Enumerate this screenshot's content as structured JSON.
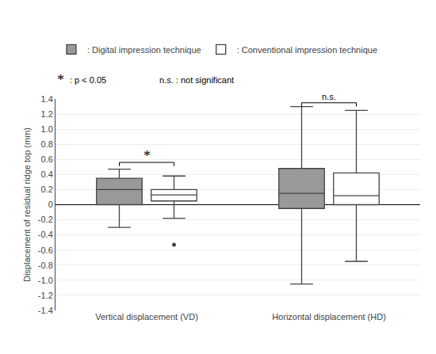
{
  "chart_data": {
    "type": "box",
    "ylabel": "Displacement of residual ridge top (mm)",
    "categories": [
      "Vertical displacement (VD)",
      "Horizontal displacement (HD)"
    ],
    "series": [
      {
        "name": ": Digital impression technique",
        "color": "#999999",
        "q1": [
          0.0,
          -0.05
        ],
        "median": [
          0.2,
          0.15
        ],
        "q3": [
          0.35,
          0.48
        ],
        "whisker_low": [
          -0.3,
          -1.05
        ],
        "whisker_high": [
          0.47,
          1.3
        ],
        "outliers": [
          [],
          []
        ]
      },
      {
        "name": ": Conventional impression technique",
        "color": "#ffffff",
        "q1": [
          0.05,
          0.0
        ],
        "median": [
          0.13,
          0.12
        ],
        "q3": [
          0.2,
          0.42
        ],
        "whisker_low": [
          -0.18,
          -0.75
        ],
        "whisker_high": [
          0.38,
          1.25
        ],
        "outliers": [
          [
            -0.53
          ],
          []
        ]
      }
    ],
    "ylim": [
      -1.4,
      1.4
    ],
    "yticks": [
      -1.4,
      -1.2,
      {
        "value": -1.0,
        "label": "-1.0"
      },
      -0.8,
      -0.6,
      -0.4,
      -0.2,
      0,
      0.2,
      0.4,
      0.6,
      0.8,
      {
        "value": 1.0,
        "label": "1.0"
      },
      1.2,
      1.4
    ],
    "grid": true,
    "legend": "top",
    "annotations": [
      {
        "text": "*",
        "category": "Vertical displacement (VD)",
        "y": 0.56
      },
      {
        "text": "n.s.",
        "category": "Horizontal displacement (HD)",
        "y": 1.35
      },
      {
        "text": "*"
      },
      {
        "text": ": p < 0.05"
      },
      {
        "text": "n.s. : not significant"
      }
    ]
  }
}
